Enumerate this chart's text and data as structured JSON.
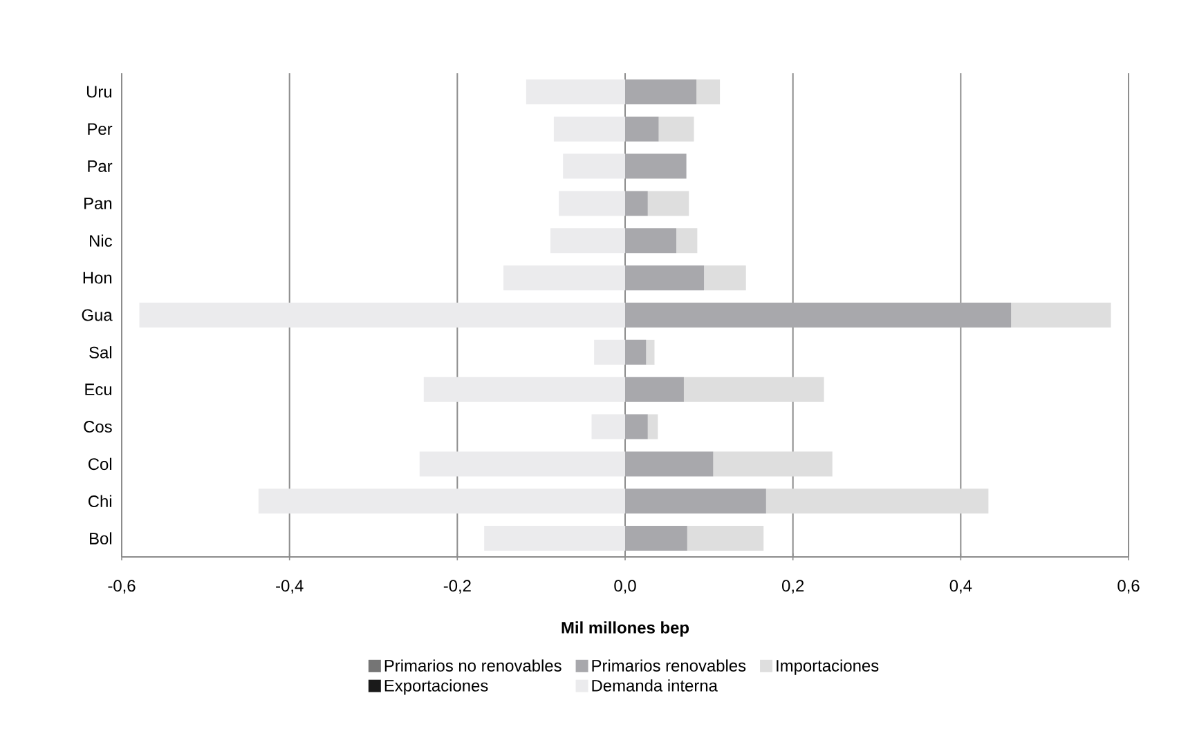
{
  "chart_data": {
    "type": "bar",
    "orientation": "horizontal",
    "stacked": true,
    "xlabel": "Mil millones bep",
    "categories": [
      "Uru",
      "Per",
      "Par",
      "Pan",
      "Nic",
      "Hon",
      "Gua",
      "Sal",
      "Ecu",
      "Cos",
      "Col",
      "Chi",
      "Bol"
    ],
    "series": [
      {
        "name": "Primarios no renovables",
        "color": "#757575",
        "values": [
          0,
          0,
          0,
          0,
          0,
          0,
          0,
          0,
          0,
          0,
          0,
          0,
          0
        ]
      },
      {
        "name": "Primarios renovables",
        "color": "#a8a8ac",
        "values": [
          0.085,
          0.04,
          0.073,
          0.027,
          0.061,
          0.094,
          0.46,
          0.025,
          0.07,
          0.027,
          0.105,
          0.168,
          0.074
        ]
      },
      {
        "name": "Importaciones",
        "color": "#dedede",
        "values": [
          0.028,
          0.042,
          0,
          0.049,
          0.025,
          0.05,
          0.119,
          0.01,
          0.167,
          0.012,
          0.142,
          0.265,
          0.091
        ]
      },
      {
        "name": "Exportaciones",
        "color": "#1a1a1a",
        "values": [
          0,
          0,
          0,
          0,
          0,
          0,
          0,
          0,
          0,
          0,
          0,
          0,
          0
        ]
      },
      {
        "name": "Demanda interna",
        "color": "#ebebed",
        "values": [
          -0.118,
          -0.085,
          -0.074,
          -0.079,
          -0.089,
          -0.145,
          -0.579,
          -0.037,
          -0.24,
          -0.04,
          -0.245,
          -0.437,
          -0.168
        ]
      }
    ],
    "xlim": [
      -0.6,
      0.6
    ],
    "xticks": [
      {
        "value": -0.6,
        "label": "-0,6"
      },
      {
        "value": -0.4,
        "label": "-0,4"
      },
      {
        "value": -0.2,
        "label": "-0,2"
      },
      {
        "value": 0,
        "label": "0,0"
      },
      {
        "value": 0.2,
        "label": "0,2"
      },
      {
        "value": 0.4,
        "label": "0,4"
      },
      {
        "value": 0.6,
        "label": "0,6"
      }
    ],
    "grid": "x",
    "legend": "bottom"
  }
}
